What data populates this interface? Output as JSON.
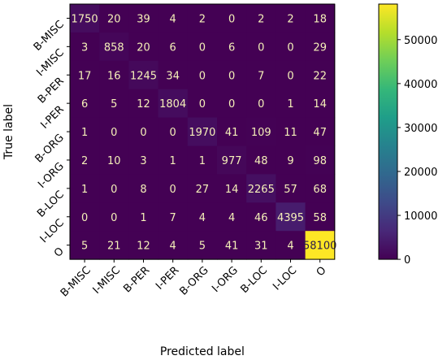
{
  "chart_data": {
    "type": "heatmap",
    "title": "",
    "xlabel": "Predicted label",
    "ylabel": "True label",
    "x_categories": [
      "B-MISC",
      "I-MISC",
      "B-PER",
      "I-PER",
      "B-ORG",
      "I-ORG",
      "B-LOC",
      "I-LOC",
      "O"
    ],
    "y_categories": [
      "B-MISC",
      "I-MISC",
      "B-PER",
      "I-PER",
      "B-ORG",
      "I-ORG",
      "B-LOC",
      "I-LOC",
      "O"
    ],
    "values": [
      [
        1750,
        20,
        39,
        4,
        2,
        0,
        2,
        2,
        18
      ],
      [
        3,
        858,
        20,
        6,
        0,
        6,
        0,
        0,
        29
      ],
      [
        17,
        16,
        1245,
        34,
        0,
        0,
        7,
        0,
        22
      ],
      [
        6,
        5,
        12,
        1804,
        0,
        0,
        0,
        1,
        14
      ],
      [
        1,
        0,
        0,
        0,
        1970,
        41,
        109,
        11,
        47
      ],
      [
        2,
        10,
        3,
        1,
        1,
        977,
        48,
        9,
        98
      ],
      [
        1,
        0,
        8,
        0,
        27,
        14,
        2265,
        57,
        68
      ],
      [
        0,
        0,
        1,
        7,
        4,
        4,
        46,
        4395,
        58
      ],
      [
        5,
        21,
        12,
        4,
        5,
        41,
        31,
        4,
        58100
      ]
    ],
    "colorbar": {
      "min": 0,
      "max": 58100,
      "ticks": [
        0,
        10000,
        20000,
        30000,
        40000,
        50000
      ],
      "colormap": "viridis"
    },
    "colors": {
      "cell_text_low": "#f5f0b8",
      "cell_text_high": "#2a1a4a"
    }
  }
}
